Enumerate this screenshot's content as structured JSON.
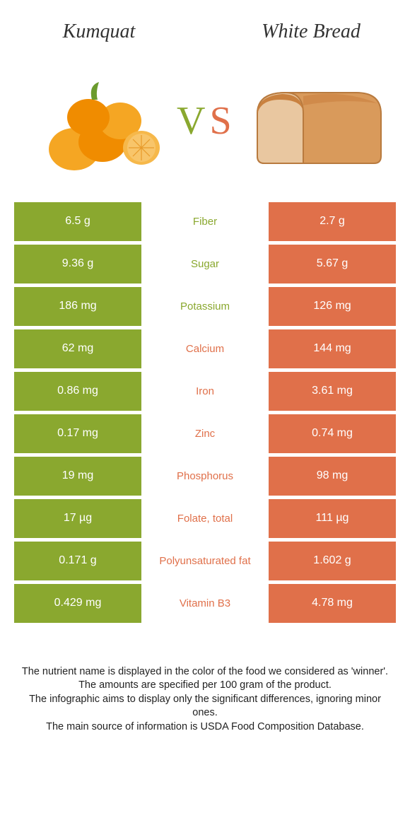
{
  "title_left": "Kumquat",
  "title_right": "White Bread",
  "vs_v": "V",
  "vs_s": "S",
  "colors": {
    "left": "#8aa82f",
    "right": "#e0704a",
    "background": "#ffffff"
  },
  "rows": [
    {
      "left": "6.5 g",
      "label": "Fiber",
      "right": "2.7 g",
      "winner": "left"
    },
    {
      "left": "9.36 g",
      "label": "Sugar",
      "right": "5.67 g",
      "winner": "left"
    },
    {
      "left": "186 mg",
      "label": "Potassium",
      "right": "126 mg",
      "winner": "left"
    },
    {
      "left": "62 mg",
      "label": "Calcium",
      "right": "144 mg",
      "winner": "right"
    },
    {
      "left": "0.86 mg",
      "label": "Iron",
      "right": "3.61 mg",
      "winner": "right"
    },
    {
      "left": "0.17 mg",
      "label": "Zinc",
      "right": "0.74 mg",
      "winner": "right"
    },
    {
      "left": "19 mg",
      "label": "Phosphorus",
      "right": "98 mg",
      "winner": "right"
    },
    {
      "left": "17 µg",
      "label": "Folate, total",
      "right": "111 µg",
      "winner": "right"
    },
    {
      "left": "0.171 g",
      "label": "Polyunsaturated fat",
      "right": "1.602 g",
      "winner": "right"
    },
    {
      "left": "0.429 mg",
      "label": "Vitamin B3",
      "right": "4.78 mg",
      "winner": "right"
    }
  ],
  "footnotes": [
    "The nutrient name is displayed in the color of the food we considered as 'winner'.",
    "The amounts are specified per 100 gram of the product.",
    "The infographic aims to display only the significant differences, ignoring minor ones.",
    "The main source of information is USDA Food Composition Database."
  ]
}
